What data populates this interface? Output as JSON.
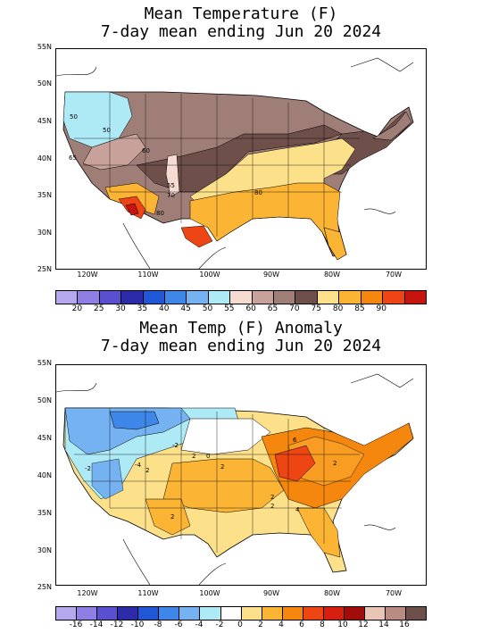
{
  "top": {
    "title_line1": "Mean Temperature (F)",
    "title_line2": "7-day mean ending Jun 20 2024",
    "lat_labels": [
      "55N",
      "50N",
      "45N",
      "40N",
      "35N",
      "30N",
      "25N"
    ],
    "lon_labels": [
      "120W",
      "110W",
      "100W",
      "90W",
      "80W",
      "70W"
    ],
    "contour_labels": [
      "50",
      "50",
      "60",
      "65",
      "55",
      "70",
      "80",
      "80"
    ],
    "colorbar_colors": [
      "#b6a7ef",
      "#8f7ee3",
      "#5a4fcf",
      "#2c2ca8",
      "#1f57d6",
      "#3e86e8",
      "#75b2f1",
      "#aee9f6",
      "#f5dbd0",
      "#c8a29a",
      "#a07e78",
      "#6e4f49",
      "#fde08a",
      "#fbb434",
      "#f5870e",
      "#ee4514",
      "#c8140e"
    ],
    "colorbar_labels": [
      "20",
      "25",
      "30",
      "35",
      "40",
      "45",
      "50",
      "55",
      "60",
      "65",
      "70",
      "75",
      "80",
      "85",
      "90"
    ]
  },
  "bottom": {
    "title_line1": "Mean Temp (F) Anomaly",
    "title_line2": "7-day mean ending Jun 20 2024",
    "lat_labels": [
      "55N",
      "50N",
      "45N",
      "40N",
      "35N",
      "30N",
      "25N"
    ],
    "lon_labels": [
      "120W",
      "110W",
      "100W",
      "90W",
      "80W",
      "70W"
    ],
    "contour_labels": [
      "-2",
      "-2",
      "-4",
      "2",
      "2",
      "0",
      "2",
      "2",
      "6",
      "2",
      "4",
      "2",
      "2"
    ],
    "colorbar_colors": [
      "#b6a7ef",
      "#8f7ee3",
      "#5a4fcf",
      "#2c2ca8",
      "#1f57d6",
      "#3e86e8",
      "#75b2f1",
      "#aee9f6",
      "#ffffff",
      "#fde08a",
      "#fbb434",
      "#f5870e",
      "#ee4514",
      "#d81e0e",
      "#a00d0a",
      "#e8c5b5",
      "#b88c80",
      "#6e4f49"
    ],
    "colorbar_labels": [
      "-16",
      "-14",
      "-12",
      "-10",
      "-8",
      "-6",
      "-4",
      "-2",
      "0",
      "2",
      "4",
      "6",
      "8",
      "10",
      "12",
      "14",
      "16"
    ]
  }
}
